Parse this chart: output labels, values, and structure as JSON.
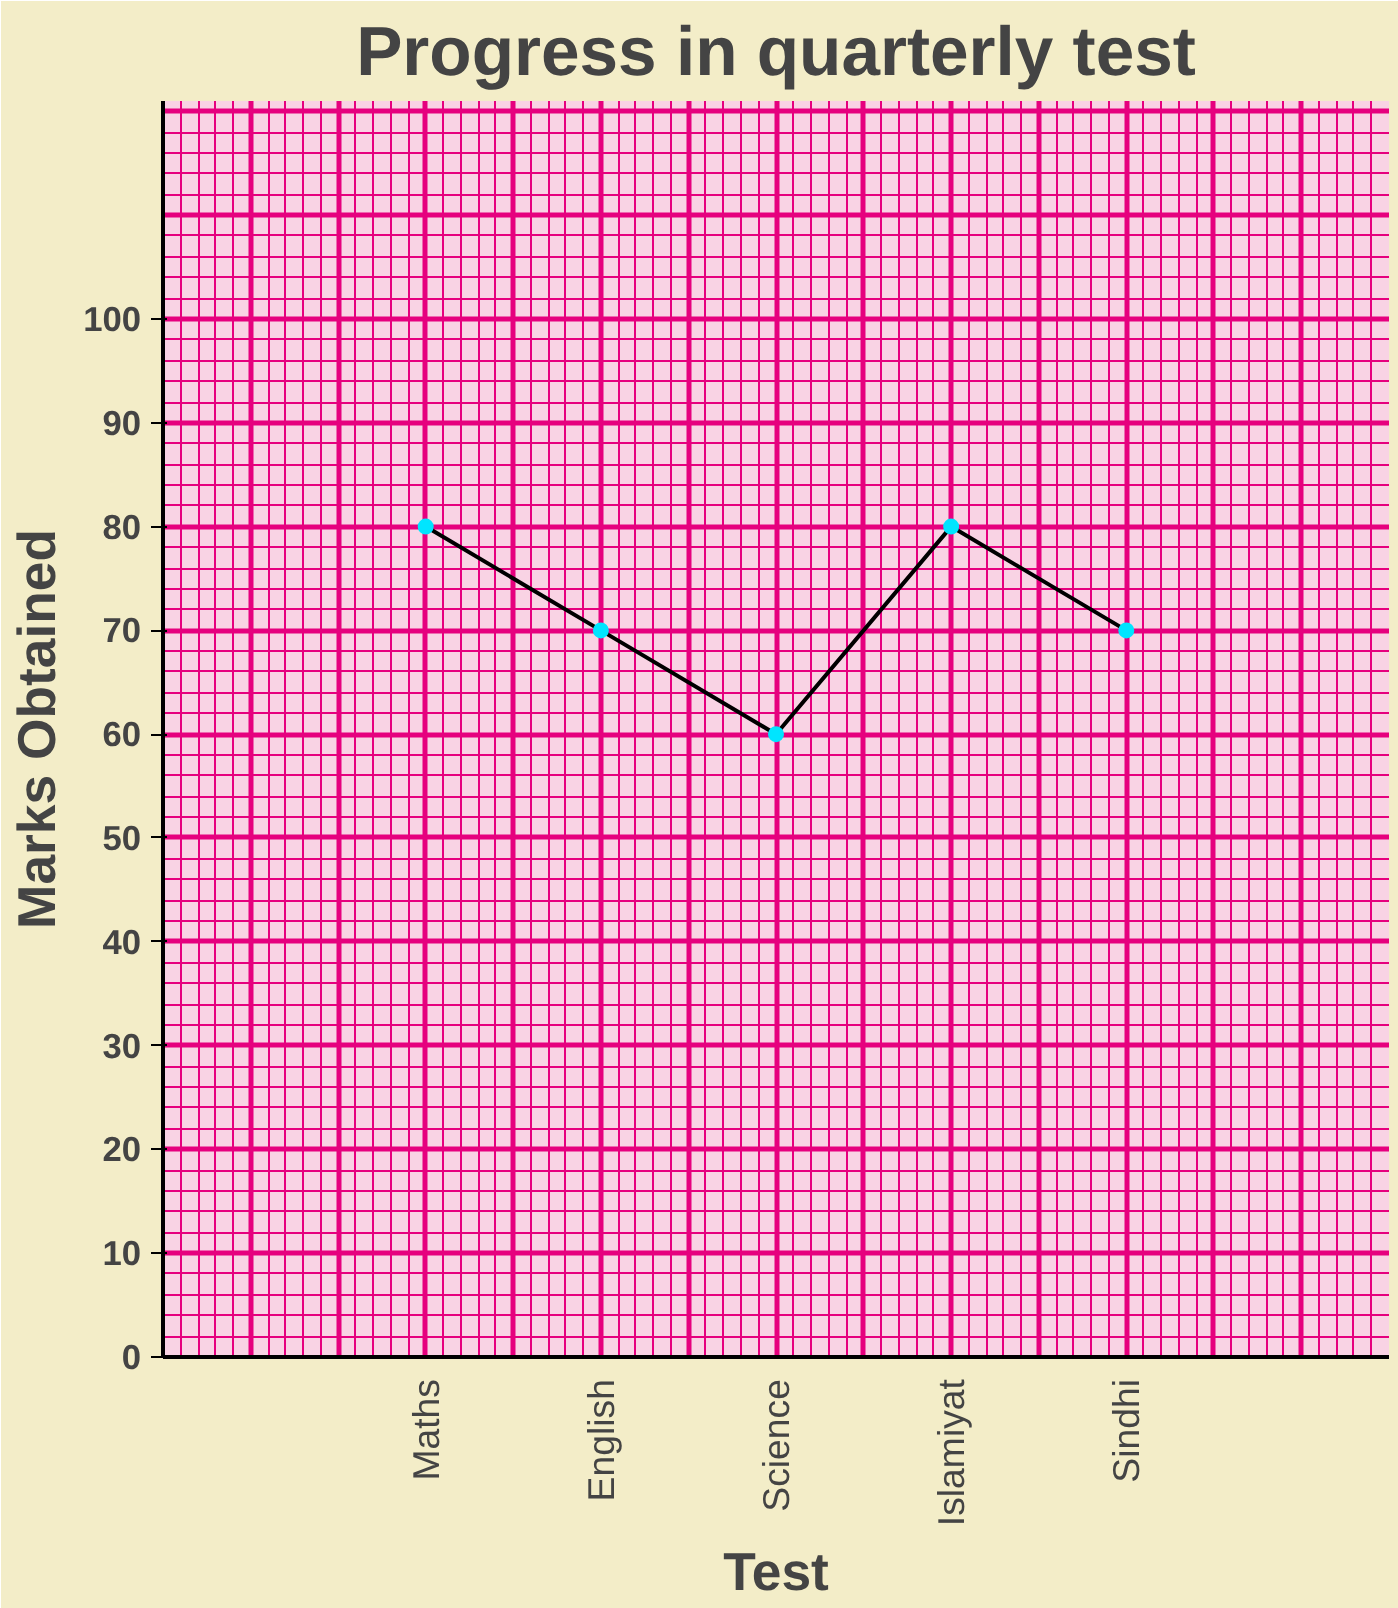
{
  "chart_data": {
    "type": "line",
    "title": "Progress in quarterly test",
    "xlabel": "Test",
    "ylabel": "Marks Obtained",
    "categories": [
      "Maths",
      "English",
      "Science",
      "Islamiyat",
      "Sindhi"
    ],
    "series": [
      {
        "color": "#000000",
        "values": [
          80,
          70,
          60,
          80,
          70
        ]
      }
    ],
    "ylim": [
      0,
      121
    ],
    "yticks": [
      0,
      10,
      20,
      30,
      40,
      50,
      60,
      70,
      80,
      90,
      100
    ],
    "grid": true,
    "marker": "circle",
    "line_style": "solid"
  }
}
